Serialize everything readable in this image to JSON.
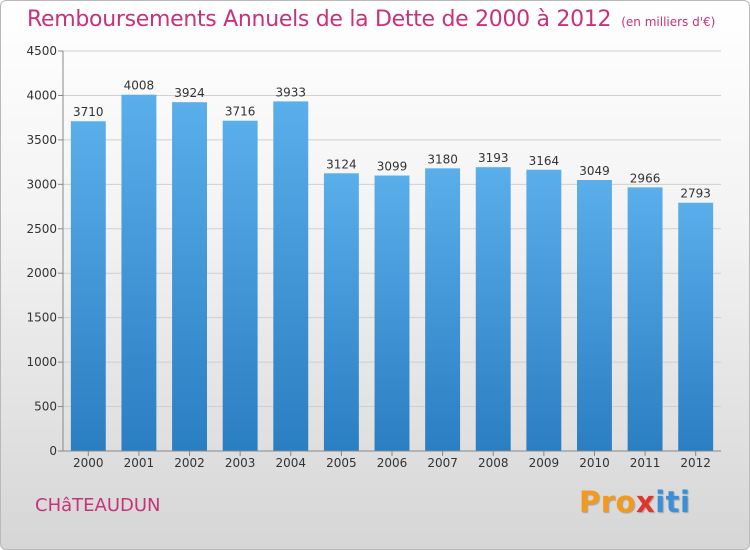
{
  "chart_data": {
    "type": "bar",
    "title": "Remboursements Annuels de la Dette de 2000 à 2012",
    "subtitle": "(en milliers d'€)",
    "categories": [
      "2000",
      "2001",
      "2002",
      "2003",
      "2004",
      "2005",
      "2006",
      "2007",
      "2008",
      "2009",
      "2010",
      "2011",
      "2012"
    ],
    "values": [
      3710,
      4008,
      3924,
      3716,
      3933,
      3124,
      3099,
      3180,
      3193,
      3164,
      3049,
      2966,
      2793
    ],
    "ylim": [
      0,
      4500
    ],
    "yticks": [
      0,
      500,
      1000,
      1500,
      2000,
      2500,
      3000,
      3500,
      4000,
      4500
    ],
    "xlabel": "",
    "ylabel": "",
    "grid": true,
    "bar_color": "#4a9fe0"
  },
  "footer": {
    "city": "CHâTEAUDUN",
    "logo": {
      "part1": "Pro",
      "x": "x",
      "part2": "iti"
    }
  }
}
